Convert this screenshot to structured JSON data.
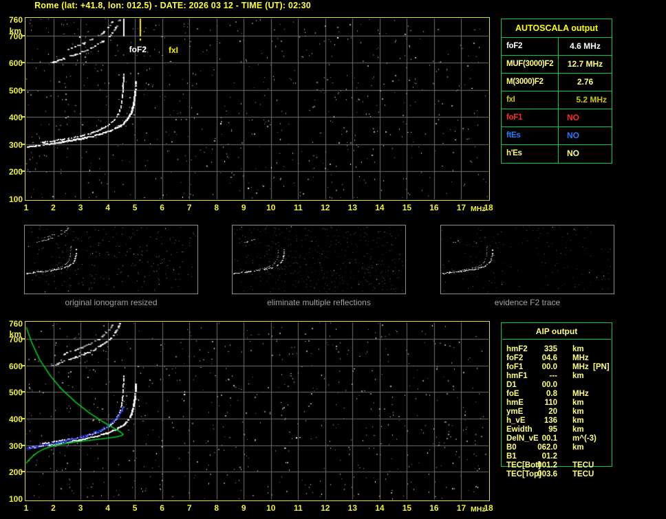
{
  "window": {
    "title": "Rome (lat: +41.8, lon: 012.5) - DATE: 2026 03 12 - TIME (UT): 02:30"
  },
  "autoscala": {
    "title": "AUTOSCALA output",
    "border_color": "#00cc55",
    "rows": [
      {
        "label": "foF2",
        "value": "4.6 MHz",
        "color": "#ffffff",
        "align": "center"
      },
      {
        "label": "MUF(3000)F2",
        "value": "12.7 MHz",
        "color": "#ffff7d",
        "align": "center"
      },
      {
        "label": "M(3000)F2",
        "value": "2.76",
        "color": "#ffff7d",
        "align": "center"
      },
      {
        "label": "fxI",
        "value": "5.2 MHz",
        "color": "#c9c900",
        "align": "right"
      },
      {
        "label": "foF1",
        "value": "NO",
        "color": "#ff2a2a",
        "align": "left"
      },
      {
        "label": "ftEs",
        "value": "NO",
        "color": "#2a7bff",
        "align": "left"
      },
      {
        "label": "h'Es",
        "value": "NO",
        "color": "#ffff7d",
        "align": "left"
      }
    ]
  },
  "aip": {
    "title": "AIP output",
    "text_color": "#ffff7d",
    "border_color": "#00cc55",
    "rows": [
      {
        "label": "hmF2",
        "value": "335",
        "unit": "km",
        "extra": ""
      },
      {
        "label": "foF2",
        "value": "04.6",
        "unit": "MHz",
        "extra": ""
      },
      {
        "label": "foF1",
        "value": "00.0",
        "unit": "MHz",
        "extra": "[PN]"
      },
      {
        "label": "hmF1",
        "value": "---",
        "unit": "km",
        "extra": ""
      },
      {
        "label": "D1",
        "value": "00.0",
        "unit": "",
        "extra": ""
      },
      {
        "label": "foE",
        "value": "0.8",
        "unit": "MHz",
        "extra": ""
      },
      {
        "label": "hmE",
        "value": "110",
        "unit": "km",
        "extra": ""
      },
      {
        "label": "ymE",
        "value": "20",
        "unit": "km",
        "extra": ""
      },
      {
        "label": "h_vE",
        "value": "136",
        "unit": "km",
        "extra": ""
      },
      {
        "label": "Ewidth",
        "value": "95",
        "unit": "km",
        "extra": ""
      },
      {
        "label": "DelN_vE",
        "value": "00.1",
        "unit": "m^(-3)",
        "extra": ""
      },
      {
        "label": "B0",
        "value": "062.0",
        "unit": "km",
        "extra": ""
      },
      {
        "label": "B1",
        "value": "01.2",
        "unit": "",
        "extra": ""
      },
      {
        "label": "TEC[Bot]",
        "value": "001.2",
        "unit": "TECU",
        "extra": ""
      },
      {
        "label": "TEC[Top]",
        "value": "003.6",
        "unit": "TECU",
        "extra": ""
      }
    ]
  },
  "panels": {
    "items": [
      {
        "label": "original ionogram resized"
      },
      {
        "label": "eliminate multiple reflections"
      },
      {
        "label": "evidence F2 trace"
      }
    ]
  },
  "chart_data": [
    {
      "id": "main-ionogram",
      "type": "scatter",
      "xlabel": "frequency",
      "ylabel": "virtual height",
      "x_unit": "MHz",
      "y_unit": "km",
      "xlim": [
        1,
        18
      ],
      "ylim": [
        100,
        760
      ],
      "grid": true,
      "x_ticks": [
        1,
        2,
        3,
        4,
        5,
        6,
        7,
        8,
        9,
        10,
        11,
        12,
        13,
        14,
        15,
        16,
        17,
        18
      ],
      "y_ticks": [
        760,
        700,
        600,
        500,
        400,
        300,
        200,
        100
      ],
      "markers": [
        {
          "label": "foF2",
          "freq_mhz": 4.6,
          "color": "#ffffff"
        },
        {
          "label": "fxI",
          "freq_mhz": 5.2,
          "color": "#ffee00"
        }
      ],
      "noise": {
        "seed": 7,
        "count": 720
      },
      "series": [
        {
          "name": "F2 X-mode trace",
          "points": [
            [
              1.05,
              290
            ],
            [
              1.5,
              296
            ],
            [
              2.0,
              303
            ],
            [
              2.5,
              311
            ],
            [
              3.0,
              320
            ],
            [
              3.5,
              331
            ],
            [
              3.8,
              339
            ],
            [
              4.1,
              349
            ],
            [
              4.4,
              364
            ],
            [
              4.6,
              378
            ],
            [
              4.8,
              402
            ],
            [
              4.9,
              425
            ],
            [
              4.97,
              455
            ],
            [
              5.02,
              495
            ],
            [
              5.04,
              530
            ]
          ]
        },
        {
          "name": "F2 O-mode trace",
          "points": [
            [
              1.6,
              306
            ],
            [
              2.0,
              312
            ],
            [
              2.5,
              320
            ],
            [
              3.0,
              330
            ],
            [
              3.4,
              341
            ],
            [
              3.7,
              352
            ],
            [
              4.0,
              368
            ],
            [
              4.2,
              385
            ],
            [
              4.35,
              404
            ],
            [
              4.45,
              425
            ],
            [
              4.52,
              455
            ],
            [
              4.56,
              490
            ],
            [
              4.58,
              530
            ],
            [
              4.59,
              560
            ]
          ]
        },
        {
          "name": "second hop trace (lower)",
          "points": [
            [
              1.95,
              598
            ],
            [
              2.3,
              612
            ],
            [
              2.7,
              626
            ],
            [
              3.1,
              641
            ],
            [
              3.5,
              659
            ],
            [
              3.9,
              684
            ],
            [
              4.15,
              706
            ],
            [
              4.35,
              735
            ],
            [
              4.45,
              758
            ]
          ]
        },
        {
          "name": "second hop trace (upper)",
          "points": [
            [
              2.4,
              643
            ],
            [
              2.8,
              658
            ],
            [
              3.2,
              674
            ],
            [
              3.6,
              694
            ],
            [
              3.9,
              716
            ],
            [
              4.1,
              738
            ],
            [
              4.2,
              756
            ]
          ]
        }
      ]
    },
    {
      "id": "restored-ionogram-with-profile",
      "type": "scatter",
      "xlabel": "frequency",
      "ylabel": "virtual height",
      "x_unit": "MHz",
      "y_unit": "km",
      "xlim": [
        1,
        18
      ],
      "ylim": [
        100,
        760
      ],
      "grid": true,
      "x_ticks": [
        1,
        2,
        3,
        4,
        5,
        6,
        7,
        8,
        9,
        10,
        11,
        12,
        13,
        14,
        15,
        16,
        17,
        18
      ],
      "y_ticks": [
        760,
        700,
        600,
        500,
        400,
        300,
        200,
        100
      ],
      "markers": [],
      "noise": {
        "seed": 13,
        "count": 700
      },
      "series": [
        {
          "name": "F2 X-mode trace",
          "points": [
            [
              1.05,
              290
            ],
            [
              1.5,
              296
            ],
            [
              2.0,
              303
            ],
            [
              2.5,
              311
            ],
            [
              3.0,
              320
            ],
            [
              3.5,
              331
            ],
            [
              3.8,
              339
            ],
            [
              4.1,
              349
            ],
            [
              4.4,
              364
            ],
            [
              4.6,
              378
            ],
            [
              4.8,
              402
            ],
            [
              4.9,
              425
            ],
            [
              4.97,
              455
            ],
            [
              5.02,
              495
            ],
            [
              5.04,
              530
            ]
          ]
        },
        {
          "name": "F2 O-mode trace",
          "points": [
            [
              1.6,
              306
            ],
            [
              2.0,
              312
            ],
            [
              2.5,
              320
            ],
            [
              3.0,
              330
            ],
            [
              3.4,
              341
            ],
            [
              3.7,
              352
            ],
            [
              4.0,
              368
            ],
            [
              4.2,
              385
            ],
            [
              4.35,
              404
            ],
            [
              4.45,
              425
            ],
            [
              4.52,
              455
            ],
            [
              4.56,
              490
            ],
            [
              4.58,
              530
            ],
            [
              4.59,
              560
            ]
          ]
        },
        {
          "name": "second hop trace (lower)",
          "points": [
            [
              1.95,
              598
            ],
            [
              2.3,
              612
            ],
            [
              2.7,
              626
            ],
            [
              3.1,
              641
            ],
            [
              3.5,
              659
            ],
            [
              3.9,
              684
            ],
            [
              4.15,
              706
            ],
            [
              4.35,
              735
            ],
            [
              4.45,
              758
            ]
          ]
        },
        {
          "name": "second hop trace (upper)",
          "points": [
            [
              2.4,
              643
            ],
            [
              2.8,
              658
            ],
            [
              3.2,
              674
            ],
            [
              3.6,
              694
            ],
            [
              3.9,
              716
            ],
            [
              4.1,
              738
            ],
            [
              4.2,
              756
            ]
          ]
        },
        {
          "name": "Autoscala restored trace (blue)",
          "color": "#2836d6",
          "points": [
            [
              1.03,
              289
            ],
            [
              1.5,
              298
            ],
            [
              2.0,
              308
            ],
            [
              2.5,
              318
            ],
            [
              3.0,
              330
            ],
            [
              3.5,
              346
            ],
            [
              3.8,
              360
            ],
            [
              4.1,
              380
            ],
            [
              4.3,
              400
            ],
            [
              4.45,
              420
            ],
            [
              4.55,
              437
            ],
            [
              4.6,
              446
            ]
          ]
        },
        {
          "name": "electron density profile (green)",
          "color": "#00cc22",
          "points": [
            [
              1.0,
              746
            ],
            [
              1.2,
              688
            ],
            [
              1.5,
              622
            ],
            [
              1.9,
              560
            ],
            [
              2.3,
              512
            ],
            [
              2.8,
              464
            ],
            [
              3.3,
              424
            ],
            [
              3.8,
              390
            ],
            [
              4.2,
              366
            ],
            [
              4.45,
              351
            ],
            [
              4.57,
              341
            ],
            [
              4.5,
              336
            ],
            [
              4.3,
              331
            ],
            [
              4.0,
              327
            ],
            [
              3.6,
              322
            ],
            [
              3.1,
              316
            ],
            [
              2.6,
              309
            ],
            [
              2.2,
              302
            ],
            [
              1.9,
              295
            ],
            [
              1.65,
              286
            ],
            [
              1.45,
              275
            ],
            [
              1.28,
              262
            ],
            [
              1.13,
              248
            ],
            [
              1.03,
              236
            ],
            [
              1.0,
              231
            ]
          ]
        }
      ]
    }
  ]
}
